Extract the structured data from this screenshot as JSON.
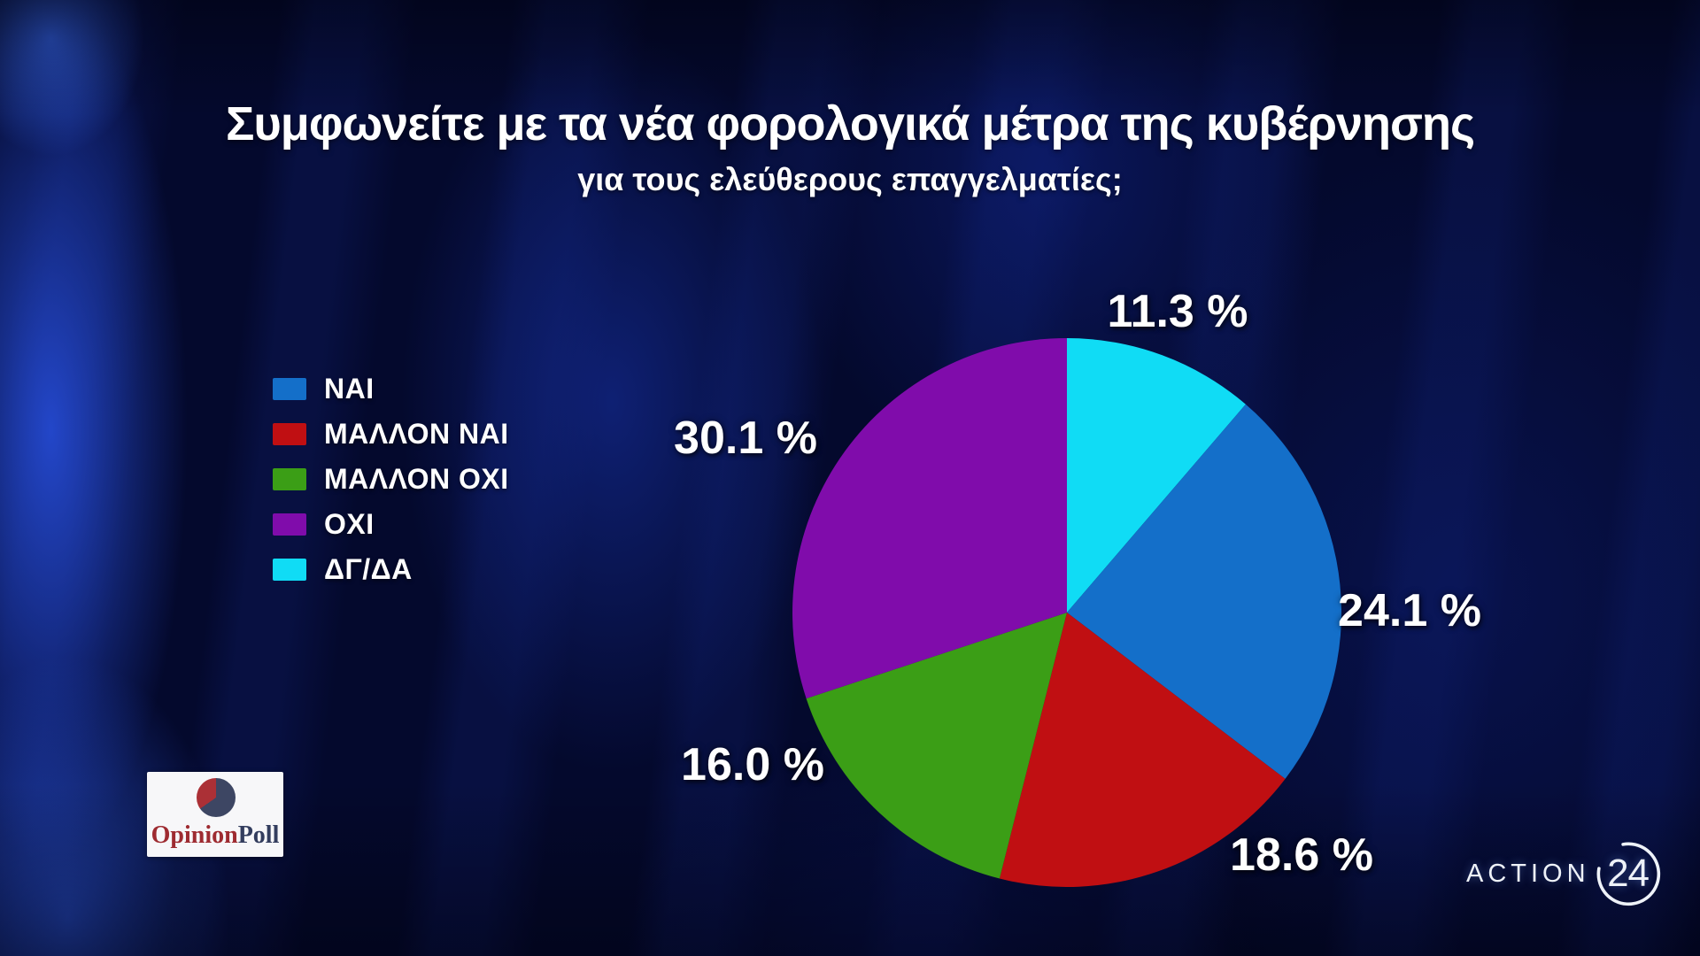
{
  "title": "Συμφωνείτε με τα νέα φορολογικά μέτρα της κυβέρνησης",
  "subtitle": "για τους ελεύθερους επαγγελματίες;",
  "legend": {
    "items": [
      {
        "label": "ΝΑΙ",
        "color": "#146fc9"
      },
      {
        "label": "ΜΑΛΛΟΝ ΝΑΙ",
        "color": "#c00f12"
      },
      {
        "label": "ΜΑΛΛΟΝ ΟΧΙ",
        "color": "#3b9e16"
      },
      {
        "label": "ΟΧΙ",
        "color": "#800cab"
      },
      {
        "label": "ΔΓ/ΔΑ",
        "color": "#10dcf5"
      }
    ]
  },
  "chart_data": {
    "type": "pie",
    "title": "Συμφωνείτε με τα νέα φορολογικά μέτρα της κυβέρνησης για τους ελεύθερους επαγγελματίες;",
    "start_angle_deg": 0,
    "direction": "clockwise",
    "legend_position": "left",
    "slices": [
      {
        "label": "ΔΓ/ΔΑ",
        "value": 11.3,
        "display": "11.3 %",
        "color": "#10dcf5"
      },
      {
        "label": "ΝΑΙ",
        "value": 24.1,
        "display": "24.1 %",
        "color": "#146fc9"
      },
      {
        "label": "ΜΑΛΛΟΝ ΝΑΙ",
        "value": 18.6,
        "display": "18.6 %",
        "color": "#c00f12"
      },
      {
        "label": "ΜΑΛΛΟΝ ΟΧΙ",
        "value": 16.0,
        "display": "16.0 %",
        "color": "#3b9e16"
      },
      {
        "label": "ΟΧΙ",
        "value": 30.1,
        "display": "30.1 %",
        "color": "#800cab"
      }
    ]
  },
  "logos": {
    "opinion_poll": {
      "text_primary": "Opinion",
      "text_secondary": "Poll",
      "color_primary": "#9e2b31",
      "color_secondary": "#333d5e",
      "pie_main": "#3d4663",
      "pie_wedge": "#ab3036"
    },
    "action24": {
      "word": "ACTION",
      "number": "24"
    }
  }
}
